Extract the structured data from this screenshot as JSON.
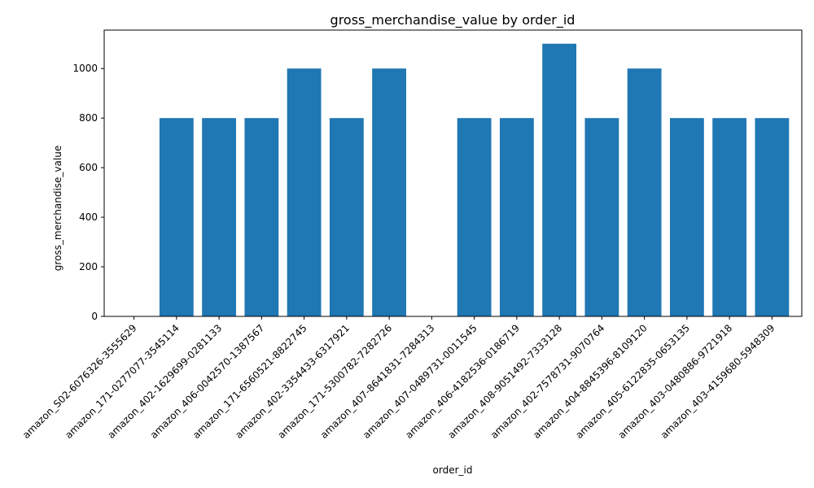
{
  "chart_data": {
    "type": "bar",
    "title": "gross_merchandise_value by order_id",
    "xlabel": "order_id",
    "ylabel": "gross_merchandise_value",
    "categories": [
      "amazon_S02-6076326-3555629",
      "amazon_171-0277077-3545114",
      "amazon_402-1629699-0281133",
      "amazon_406-0042570-1387567",
      "amazon_171-6560521-8822745",
      "amazon_402-3354433-6317921",
      "amazon_171-5300782-7282726",
      "amazon_407-8641831-7284313",
      "amazon_407-0489731-0011545",
      "amazon_406-4182536-0186719",
      "amazon_408-9051492-7333128",
      "amazon_402-7578731-9070764",
      "amazon_404-8845396-8109120",
      "amazon_405-6122835-0653135",
      "amazon_403-0480886-9721918",
      "amazon_403-4159680-5948309"
    ],
    "values": [
      0,
      800,
      800,
      800,
      1000,
      800,
      1000,
      0,
      800,
      800,
      1100,
      800,
      1000,
      800,
      800,
      800
    ],
    "ylim": [
      0,
      1155
    ],
    "yticks": [
      0,
      200,
      400,
      600,
      800,
      1000
    ],
    "bar_color": "#1f77b4",
    "grid": false,
    "legend": "none"
  }
}
